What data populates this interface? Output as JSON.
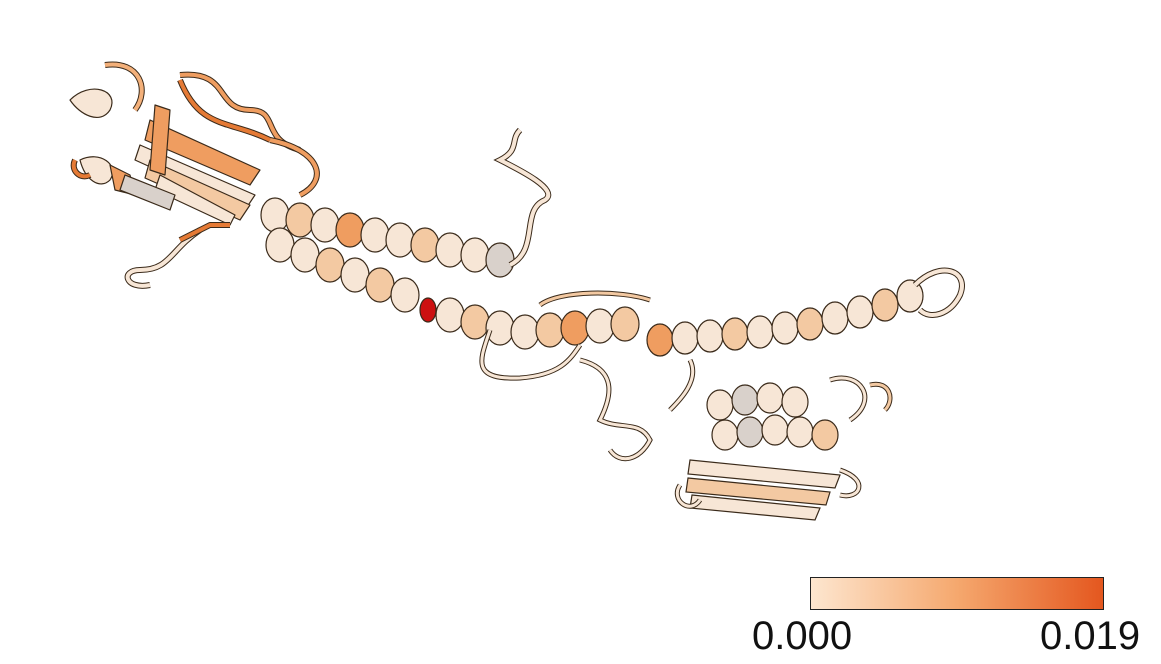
{
  "image": {
    "subject": "protein-cartoon-structure",
    "background_color": "#ffffff",
    "outline_color": "#3a2a1a"
  },
  "colorbar": {
    "min_label": "0.000",
    "max_label": "0.019",
    "color_low": "#fde6cf",
    "color_mid": "#f5a86e",
    "color_high": "#e4571f"
  },
  "palette": {
    "pale": "#f7e6d6",
    "light": "#f3c9a2",
    "medium": "#ef9d60",
    "strong": "#e57a35",
    "grey": "#d9d1cb",
    "hot": "#cc1111"
  }
}
